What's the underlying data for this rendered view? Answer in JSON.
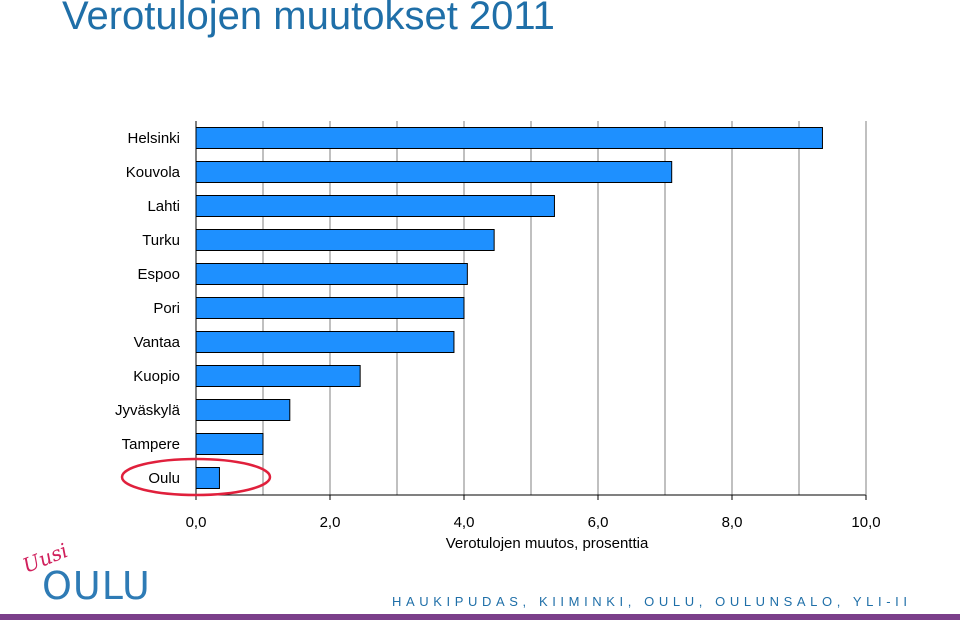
{
  "slide": {
    "title": "Verotulojen muutokset 2011",
    "footer": "HAUKIPUDAS, KIIMINKI, OULU, OULUNSALO, YLI-II",
    "logo": {
      "top_word": "Uusi",
      "main_word": "OULU"
    }
  },
  "colors": {
    "title": "#1F6FA8",
    "bar": "#1E90FF",
    "bar_edge": "#000000",
    "highlight": "#E0203C",
    "footer_bar": "#7B3F8A",
    "logo_pink": "#D0205C",
    "logo_blue": "#2E7BB5"
  },
  "chart_data": {
    "type": "bar",
    "orientation": "horizontal",
    "categories": [
      "Helsinki",
      "Kouvola",
      "Lahti",
      "Turku",
      "Espoo",
      "Pori",
      "Vantaa",
      "Kuopio",
      "Jyväskylä",
      "Tampere",
      "Oulu"
    ],
    "values": [
      9.35,
      7.1,
      5.35,
      4.45,
      4.05,
      4.0,
      3.85,
      2.45,
      1.4,
      1.0,
      0.35
    ],
    "xlabel": "Verotulojen muutos, prosenttia",
    "xlim": [
      0,
      10
    ],
    "xticks": [
      "0,0",
      "2,0",
      "4,0",
      "6,0",
      "8,0",
      "10,0"
    ],
    "grid": true,
    "highlighted_category": "Oulu"
  }
}
